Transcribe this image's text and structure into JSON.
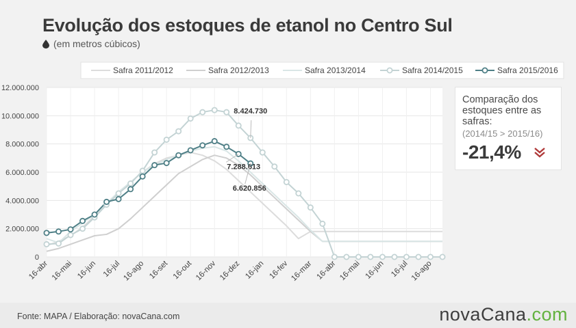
{
  "header": {
    "title": "Evolução dos estoques de etanol no Centro Sul",
    "subtitle": "(em metros cúbicos)"
  },
  "panel": {
    "heading": "Comparação dos estoques entre as safras:",
    "sub": "(2014/15 > 2015/16)",
    "value": "-21,4%"
  },
  "footer": {
    "source": "Fonte: MAPA / Elaboração:  novaCana.com",
    "logo_part1": "nova",
    "logo_part2": "Cana",
    "logo_part3": ".com"
  },
  "colors": {
    "s2011": "#dcdcdc",
    "s2012": "#cfcfcf",
    "s2013": "#d9e6e6",
    "s2014": "#c3d3d4",
    "s2015": "#4e7f86",
    "accent_red": "#b03a3a",
    "logo_green": "#63b23f"
  },
  "chart_data": {
    "type": "line",
    "title": "Evolução dos estoques de etanol no Centro Sul",
    "subtitle": "(em metros cúbicos)",
    "xlabel": "",
    "ylabel": "",
    "ylim": [
      0,
      12000000
    ],
    "yticks": [
      0,
      2000000,
      4000000,
      6000000,
      8000000,
      10000000,
      12000000
    ],
    "ytick_labels": [
      "0",
      "2.000.000",
      "4.000.000",
      "6.000.000",
      "8.000.000",
      "10.000.000",
      "12.000.000"
    ],
    "xtick_labels": [
      "16-abr",
      "16-mai",
      "16-jun",
      "16-jul",
      "16-ago",
      "16-set",
      "16-out",
      "16-nov",
      "16-dez",
      "16-jan",
      "16-fev",
      "16-mar",
      "16-abr",
      "16-mai",
      "16-jun",
      "16-jul",
      "16-ago"
    ],
    "grid": true,
    "legend_position": "top",
    "series": [
      {
        "name": "Safra 2011/2012",
        "markers": false,
        "values": [
          800000,
          1100000,
          1500000,
          2100000,
          2900000,
          3700000,
          4500000,
          5300000,
          6000000,
          6600000,
          7000000,
          7200000,
          7400000,
          7200000,
          6800000,
          6200000,
          5400000,
          4600000,
          3800000,
          3000000,
          2200000,
          1300000,
          1800000,
          1800000,
          1800000,
          1800000,
          1800000,
          1800000,
          1800000,
          1800000,
          1800000,
          1800000,
          1800000,
          1800000
        ]
      },
      {
        "name": "Safra 2012/2013",
        "markers": false,
        "values": [
          400000,
          600000,
          900000,
          1200000,
          1500000,
          1600000,
          2000000,
          2700000,
          3500000,
          4300000,
          5100000,
          5900000,
          6400000,
          6900000,
          7200000,
          7000000,
          6500000,
          5800000,
          5000000,
          4200000,
          3400000,
          2600000,
          1800000,
          1100000,
          1100000,
          1100000,
          1100000,
          1100000,
          1100000,
          1100000,
          1100000,
          1100000,
          1100000,
          1100000
        ]
      },
      {
        "name": "Safra 2013/2014",
        "markers": false,
        "values": [
          1300000,
          1000000,
          1800000,
          2400000,
          3000000,
          3800000,
          4600000,
          5300000,
          6000000,
          6500000,
          6900000,
          7200000,
          7500000,
          7700000,
          7800000,
          7500000,
          6800000,
          6000000,
          5200000,
          4400000,
          3600000,
          2800000,
          1900000,
          1100000,
          1100000,
          1100000,
          1100000,
          1100000,
          1100000,
          1100000,
          1100000,
          1100000,
          1100000,
          1100000
        ]
      },
      {
        "name": "Safra 2014/2015",
        "markers": true,
        "values": [
          900000,
          950000,
          1550000,
          2000000,
          2800000,
          3700000,
          4500000,
          5200000,
          6100000,
          7400000,
          8300000,
          8900000,
          9800000,
          10250000,
          10400000,
          10250000,
          9300000,
          8424730,
          7400000,
          6400000,
          5300000,
          4500000,
          3500000,
          2350000,
          0,
          0,
          0,
          0,
          0,
          0,
          0,
          0,
          0,
          0
        ]
      },
      {
        "name": "Safra 2015/2016",
        "markers": true,
        "values": [
          1700000,
          1800000,
          1950000,
          2550000,
          3000000,
          3900000,
          4100000,
          4800000,
          5700000,
          6500000,
          6650000,
          7200000,
          7550000,
          7900000,
          8200000,
          7800000,
          7288613,
          6620856
        ]
      }
    ],
    "annotations": [
      {
        "text": "8.424.730",
        "series": "Safra 2014/2015",
        "index": 17
      },
      {
        "text": "7.288.613",
        "series": "Safra 2015/2016",
        "index": 16
      },
      {
        "text": "6.620.856",
        "series": "Safra 2015/2016",
        "index": 17
      }
    ]
  }
}
